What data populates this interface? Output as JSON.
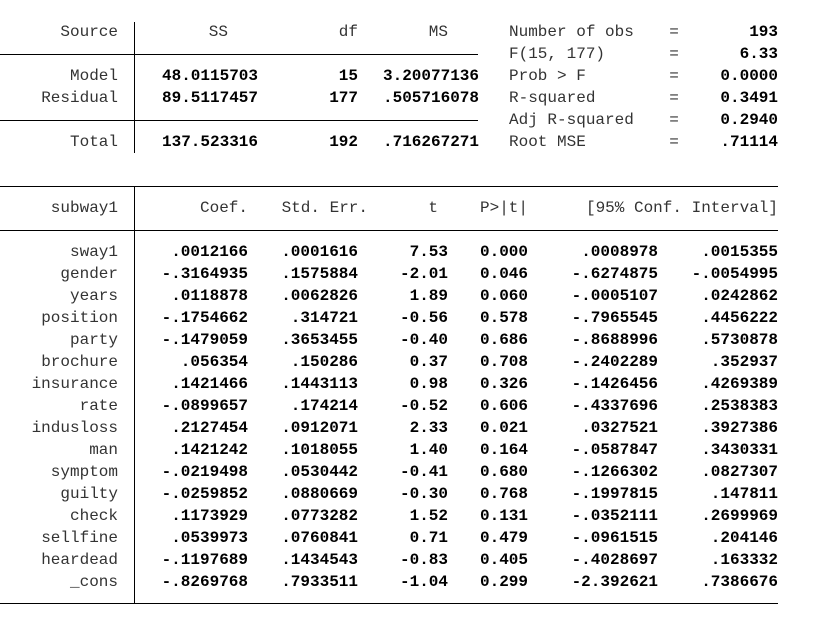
{
  "anova": {
    "headers": [
      "Source",
      "SS",
      "df",
      "MS"
    ],
    "rows": [
      [
        "Model",
        "48.0115703",
        "15",
        "3.20077136"
      ],
      [
        "Residual",
        "89.5117457",
        "177",
        ".505716078"
      ],
      [
        "Total",
        "137.523316",
        "192",
        ".716267271"
      ]
    ]
  },
  "stats": {
    "equals": "=",
    "rows": [
      [
        "Number of obs",
        "193"
      ],
      [
        "F(15, 177)",
        "6.33"
      ],
      [
        "Prob > F",
        "0.0000"
      ],
      [
        "R-squared",
        "0.3491"
      ],
      [
        "Adj R-squared",
        "0.2940"
      ],
      [
        "Root MSE",
        ".71114"
      ]
    ]
  },
  "coef": {
    "headers": [
      "subway1",
      "Coef.",
      "Std. Err.",
      "t",
      "P>|t|",
      "[95% Conf. Interval]"
    ],
    "rows": [
      [
        "sway1",
        ".0012166",
        ".0001616",
        "7.53",
        "0.000",
        ".0008978",
        ".0015355"
      ],
      [
        "gender",
        "-.3164935",
        ".1575884",
        "-2.01",
        "0.046",
        "-.6274875",
        "-.0054995"
      ],
      [
        "years",
        ".0118878",
        ".0062826",
        "1.89",
        "0.060",
        "-.0005107",
        ".0242862"
      ],
      [
        "position",
        "-.1754662",
        ".314721",
        "-0.56",
        "0.578",
        "-.7965545",
        ".4456222"
      ],
      [
        "party",
        "-.1479059",
        ".3653455",
        "-0.40",
        "0.686",
        "-.8688996",
        ".5730878"
      ],
      [
        "brochure",
        ".056354",
        ".150286",
        "0.37",
        "0.708",
        "-.2402289",
        ".352937"
      ],
      [
        "insurance",
        ".1421466",
        ".1443113",
        "0.98",
        "0.326",
        "-.1426456",
        ".4269389"
      ],
      [
        "rate",
        "-.0899657",
        ".174214",
        "-0.52",
        "0.606",
        "-.4337696",
        ".2538383"
      ],
      [
        "indusloss",
        ".2127454",
        ".0912071",
        "2.33",
        "0.021",
        ".0327521",
        ".3927386"
      ],
      [
        "man",
        ".1421242",
        ".1018055",
        "1.40",
        "0.164",
        "-.0587847",
        ".3430331"
      ],
      [
        "symptom",
        "-.0219498",
        ".0530442",
        "-0.41",
        "0.680",
        "-.1266302",
        ".0827307"
      ],
      [
        "guilty",
        "-.0259852",
        ".0880669",
        "-0.30",
        "0.768",
        "-.1997815",
        ".147811"
      ],
      [
        "check",
        ".1173929",
        ".0773282",
        "1.52",
        "0.131",
        "-.0352111",
        ".2699969"
      ],
      [
        "sellfine",
        ".0539973",
        ".0760841",
        "0.71",
        "0.479",
        "-.0961515",
        ".204146"
      ],
      [
        "heardead",
        "-.1197689",
        ".1434543",
        "-0.83",
        "0.405",
        "-.4028697",
        ".163332"
      ],
      [
        "_cons",
        "-.8269768",
        ".7933511",
        "-1.04",
        "0.299",
        "-2.392621",
        ".7386676"
      ]
    ]
  }
}
